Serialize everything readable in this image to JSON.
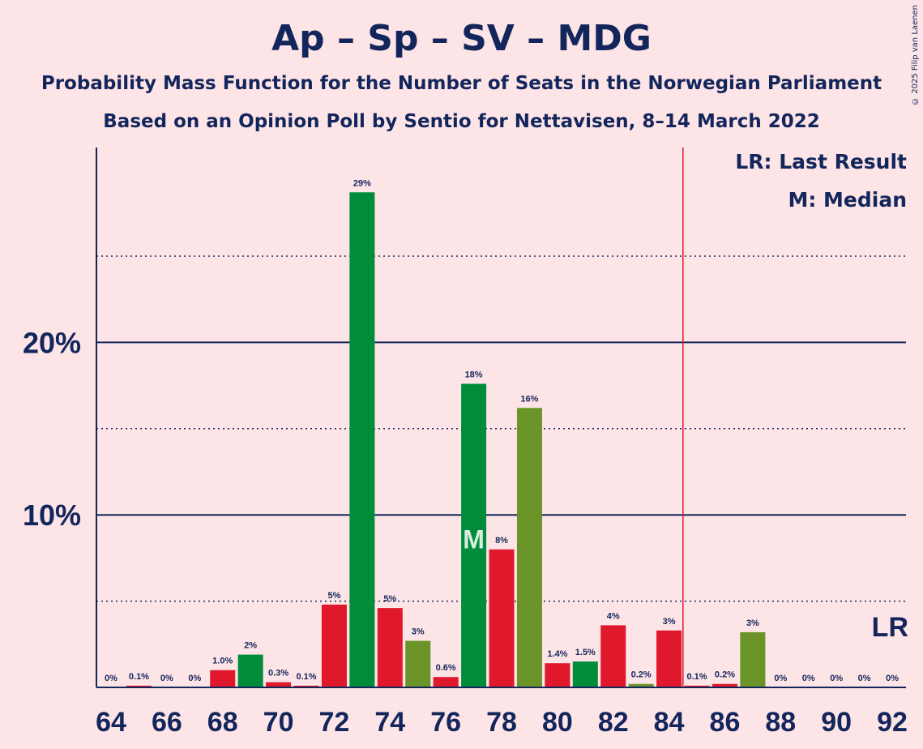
{
  "title": "Ap – Sp – SV – MDG",
  "subtitle": "Probability Mass Function for the Number of Seats in the Norwegian Parliament",
  "subtitle2": "Based on an Opinion Poll by Sentio for Nettavisen, 8–14 March 2022",
  "copyright": "© 2025 Filip van Laenen",
  "legend": {
    "last_result": "LR: Last Result",
    "median": "M: Median"
  },
  "colors": {
    "background": "#fde4e6",
    "text": "#13265c",
    "red": "#e0182b",
    "green": "#008c3a",
    "olive": "#6a9428",
    "last_result_line": "#e0182b"
  },
  "chart_data": {
    "type": "bar",
    "x": [
      64,
      65,
      66,
      67,
      68,
      69,
      70,
      71,
      72,
      73,
      74,
      75,
      76,
      77,
      78,
      79,
      80,
      81,
      82,
      83,
      84,
      85,
      86,
      87,
      88,
      89,
      90,
      91,
      92
    ],
    "values": [
      0,
      0.1,
      0,
      0,
      1.0,
      1.9,
      0.3,
      0.1,
      4.8,
      28.7,
      4.6,
      2.7,
      0.6,
      17.6,
      8.0,
      16.2,
      1.4,
      1.5,
      3.6,
      0.2,
      3.3,
      0.1,
      0.2,
      3.2,
      0,
      0,
      0,
      0,
      0
    ],
    "labels": [
      "0%",
      "0.1%",
      "0%",
      "0%",
      "1.0%",
      "2%",
      "0.3%",
      "0.1%",
      "5%",
      "29%",
      "5%",
      "3%",
      "0.6%",
      "18%",
      "8%",
      "16%",
      "1.4%",
      "1.5%",
      "4%",
      "0.2%",
      "3%",
      "0.1%",
      "0.2%",
      "3%",
      "0%",
      "0%",
      "0%",
      "0%",
      "0%"
    ],
    "bar_colors": [
      "red",
      "red",
      "red",
      "red",
      "red",
      "green",
      "red",
      "red",
      "red",
      "green",
      "red",
      "olive",
      "red",
      "green",
      "red",
      "olive",
      "red",
      "green",
      "red",
      "olive",
      "red",
      "red",
      "red",
      "olive",
      "red",
      "red",
      "red",
      "red",
      "red"
    ],
    "x_tick_labels": [
      "64",
      "66",
      "68",
      "70",
      "72",
      "74",
      "76",
      "78",
      "80",
      "82",
      "84",
      "86",
      "88",
      "90",
      "92"
    ],
    "y_tick_labels": [
      "10%",
      "20%"
    ],
    "y_ticks": [
      10,
      20
    ],
    "y_minor_ticks": [
      5,
      15,
      25
    ],
    "ylim": [
      0,
      31.3
    ],
    "xlim": [
      63.5,
      92.5
    ],
    "median": 77,
    "median_label": "M",
    "last_result": 84.5,
    "last_result_label": "LR",
    "grid": true
  }
}
